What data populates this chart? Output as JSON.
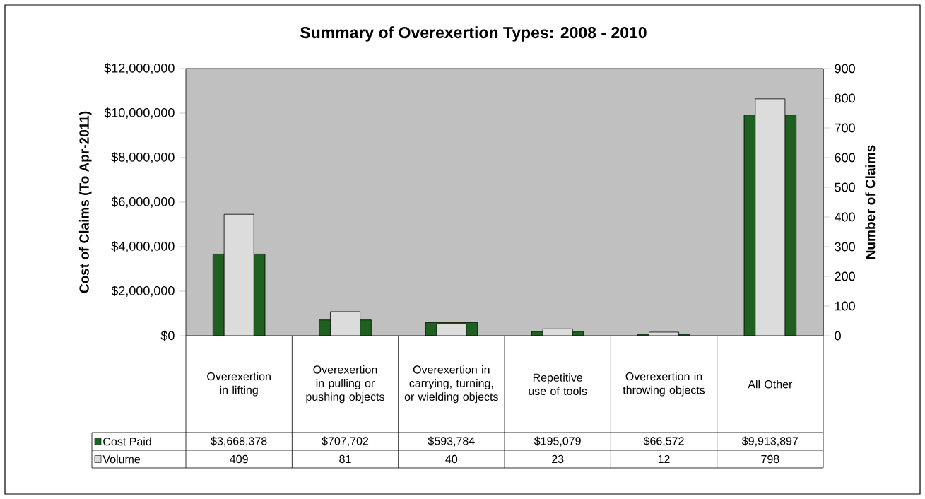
{
  "chart_data": {
    "type": "bar",
    "title": "Summary of Overexertion Types: 2008 - 2010",
    "ylabel": "Cost of Claims (To Apr-2011)",
    "y2label": "Number of Claims",
    "categories": [
      "Overexertion in lifting",
      "Overexertion in pulling or pushing objects",
      "Overexertion in carrying, turning, or wielding objects",
      "Repetitive use of tools",
      "Overexertion in throwing objects",
      "All Other"
    ],
    "series": [
      {
        "name": "Cost Paid",
        "color": "#1f5f1f",
        "values": [
          3668378,
          707702,
          593784,
          195079,
          66572,
          9913897
        ],
        "value_labels": [
          "$3,668,378",
          "$707,702",
          "$593,784",
          "$195,079",
          "$66,572",
          "$9,913,897"
        ]
      },
      {
        "name": "Volume",
        "color": "#dcdcdc",
        "axis": "y2",
        "values": [
          409,
          81,
          40,
          23,
          12,
          798
        ],
        "value_labels": [
          "409",
          "81",
          "40",
          "23",
          "12",
          "798"
        ]
      }
    ],
    "ylim": [
      0,
      12000000
    ],
    "yticks": [
      {
        "value": 0,
        "label": "$0"
      },
      {
        "value": 2000000,
        "label": "$2,000,000"
      },
      {
        "value": 4000000,
        "label": "$4,000,000"
      },
      {
        "value": 6000000,
        "label": "$6,000,000"
      },
      {
        "value": 8000000,
        "label": "$8,000,000"
      },
      {
        "value": 10000000,
        "label": "$10,000,000"
      },
      {
        "value": 12000000,
        "label": "$12,000,000"
      }
    ],
    "y2lim": [
      0,
      900
    ],
    "y2ticks": [
      0,
      100,
      200,
      300,
      400,
      500,
      600,
      700,
      800,
      900
    ],
    "legend": "bottom left"
  }
}
